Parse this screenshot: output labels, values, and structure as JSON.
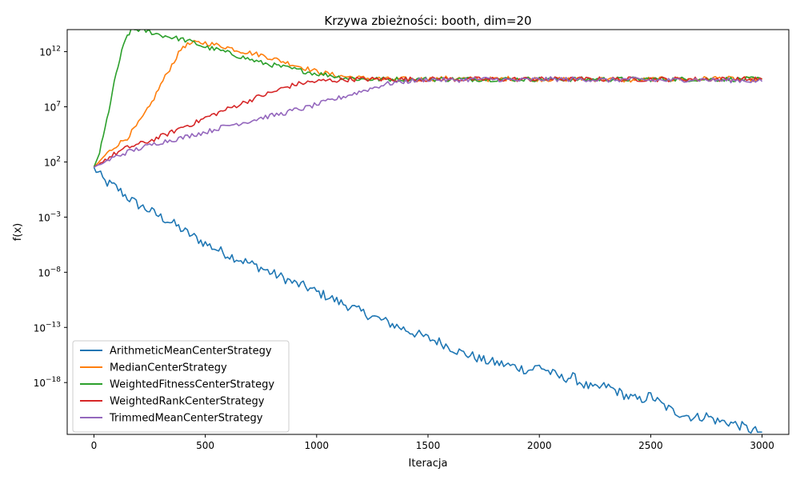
{
  "chart_data": {
    "type": "line",
    "title": "Krzywa zbieżności: booth, dim=20",
    "xlabel": "Iteracja",
    "ylabel": "f(x)",
    "yscale": "log",
    "xlim": [
      -120,
      3120
    ],
    "ylim_exp": [
      -22.7,
      14.0
    ],
    "xticks": [
      0,
      500,
      1000,
      1500,
      2000,
      2500,
      3000
    ],
    "yticks_exp": [
      12,
      7,
      2,
      -3,
      -8,
      -13,
      -18
    ],
    "ytick_labels": [
      {
        "base": "10",
        "exp": "12"
      },
      {
        "base": "10",
        "exp": "7"
      },
      {
        "base": "10",
        "exp": "2"
      },
      {
        "base": "10",
        "exp": "−3"
      },
      {
        "base": "10",
        "exp": "−8"
      },
      {
        "base": "10",
        "exp": "−13"
      },
      {
        "base": "10",
        "exp": "−18"
      }
    ],
    "grid": false,
    "legend_position": "lower-left",
    "series": [
      {
        "name": "ArithmeticMeanCenterStrategy",
        "color": "#1f77b4",
        "x": [
          0,
          50,
          100,
          150,
          200,
          250,
          300,
          350,
          400,
          450,
          500,
          550,
          600,
          650,
          700,
          750,
          800,
          850,
          900,
          950,
          1000,
          1050,
          1100,
          1150,
          1200,
          1250,
          1300,
          1350,
          1400,
          1450,
          1500,
          1550,
          1600,
          1650,
          1700,
          1750,
          1800,
          1850,
          1900,
          1950,
          2000,
          2050,
          2100,
          2150,
          2200,
          2250,
          2300,
          2350,
          2400,
          2450,
          2500,
          2550,
          2600,
          2650,
          2700,
          2750,
          2800,
          2850,
          2900,
          2950,
          3000
        ],
        "log10_values": [
          1.5,
          0.2,
          -0.3,
          -1.2,
          -1.9,
          -2.4,
          -3.0,
          -3.5,
          -4.2,
          -4.8,
          -5.4,
          -5.9,
          -6.4,
          -6.8,
          -7.2,
          -7.6,
          -8.1,
          -8.5,
          -9.0,
          -9.3,
          -9.8,
          -10.2,
          -10.7,
          -11.1,
          -11.6,
          -12.0,
          -12.4,
          -12.8,
          -13.2,
          -13.6,
          -14.0,
          -14.3,
          -14.8,
          -15.3,
          -15.6,
          -16.0,
          -16.2,
          -16.4,
          -16.6,
          -16.9,
          -16.5,
          -17.1,
          -17.6,
          -17.5,
          -18.2,
          -18.6,
          -18.3,
          -18.8,
          -19.3,
          -19.6,
          -19.2,
          -20.0,
          -20.6,
          -20.9,
          -21.2,
          -21.0,
          -21.5,
          -21.6,
          -21.9,
          -22.3,
          -22.5
        ]
      },
      {
        "name": "MedianCenterStrategy",
        "color": "#ff7f0e",
        "x": [
          0,
          50,
          100,
          150,
          200,
          250,
          300,
          350,
          400,
          450,
          500,
          550,
          600,
          650,
          700,
          750,
          800,
          850,
          900,
          950,
          1000,
          1050,
          1100,
          1150,
          1200,
          1250,
          1300,
          1350,
          1400,
          1450,
          1500,
          1600,
          1700,
          1800,
          1900,
          2000,
          2100,
          2200,
          2300,
          2400,
          2500,
          2600,
          2700,
          2800,
          2900,
          3000
        ],
        "log10_values": [
          1.5,
          2.6,
          3.5,
          4.2,
          5.5,
          7.0,
          9.0,
          10.8,
          12.5,
          12.8,
          12.8,
          12.6,
          12.4,
          12.1,
          11.9,
          11.7,
          11.4,
          11.1,
          10.8,
          10.5,
          10.2,
          10.0,
          9.8,
          9.7,
          9.6,
          9.6,
          9.5,
          9.5,
          9.5,
          9.5,
          9.5,
          9.6,
          9.5,
          9.5,
          9.6,
          9.5,
          9.5,
          9.5,
          9.5,
          9.4,
          9.5,
          9.5,
          9.5,
          9.6,
          9.5,
          9.5
        ]
      },
      {
        "name": "WeightedFitnessCenterStrategy",
        "color": "#2ca02c",
        "x": [
          0,
          25,
          50,
          75,
          100,
          125,
          150,
          175,
          200,
          225,
          250,
          300,
          350,
          400,
          450,
          500,
          550,
          600,
          650,
          700,
          750,
          800,
          850,
          900,
          950,
          1000,
          1050,
          1100,
          1150,
          1200,
          1250,
          1300,
          1400,
          1500,
          1600,
          1700,
          1800,
          1900,
          2000,
          2100,
          2200,
          2300,
          2400,
          2500,
          2600,
          2700,
          2800,
          2900,
          3000
        ],
        "log10_values": [
          1.5,
          2.8,
          5.0,
          7.5,
          10.0,
          12.0,
          13.5,
          14.0,
          14.0,
          13.9,
          13.8,
          13.5,
          13.3,
          13.1,
          12.8,
          12.4,
          12.2,
          11.9,
          11.6,
          11.3,
          11.0,
          10.8,
          10.6,
          10.4,
          10.2,
          10.0,
          9.9,
          9.7,
          9.6,
          9.5,
          9.5,
          9.5,
          9.5,
          9.5,
          9.5,
          9.5,
          9.5,
          9.5,
          9.5,
          9.5,
          9.5,
          9.5,
          9.5,
          9.5,
          9.5,
          9.5,
          9.5,
          9.5,
          9.5
        ]
      },
      {
        "name": "WeightedRankCenterStrategy",
        "color": "#d62728",
        "x": [
          0,
          50,
          100,
          150,
          200,
          250,
          300,
          350,
          400,
          450,
          500,
          550,
          600,
          650,
          700,
          750,
          800,
          850,
          900,
          950,
          1000,
          1050,
          1100,
          1150,
          1200,
          1300,
          1400,
          1500,
          1600,
          1700,
          1800,
          1900,
          2000,
          2100,
          2200,
          2300,
          2400,
          2500,
          2600,
          2700,
          2800,
          2900,
          3000
        ],
        "log10_values": [
          1.5,
          2.2,
          2.8,
          3.3,
          3.6,
          3.9,
          4.3,
          4.7,
          5.2,
          5.5,
          6.0,
          6.4,
          6.8,
          7.2,
          7.6,
          8.0,
          8.3,
          8.7,
          9.0,
          9.2,
          9.3,
          9.4,
          9.4,
          9.5,
          9.5,
          9.5,
          9.5,
          9.5,
          9.5,
          9.5,
          9.5,
          9.5,
          9.5,
          9.5,
          9.5,
          9.5,
          9.5,
          9.5,
          9.5,
          9.5,
          9.5,
          9.5,
          9.5
        ]
      },
      {
        "name": "TrimmedMeanCenterStrategy",
        "color": "#9467bd",
        "x": [
          0,
          50,
          100,
          150,
          200,
          250,
          300,
          350,
          400,
          450,
          500,
          550,
          600,
          650,
          700,
          750,
          800,
          850,
          900,
          950,
          1000,
          1050,
          1100,
          1150,
          1200,
          1250,
          1300,
          1350,
          1400,
          1450,
          1500,
          1600,
          1700,
          1800,
          1900,
          2000,
          2100,
          2200,
          2300,
          2400,
          2500,
          2600,
          2700,
          2800,
          2900,
          3000
        ],
        "log10_values": [
          1.5,
          2.0,
          2.5,
          2.9,
          3.2,
          3.5,
          3.8,
          4.0,
          4.2,
          4.5,
          4.7,
          5.0,
          5.3,
          5.5,
          5.7,
          6.0,
          6.2,
          6.4,
          6.7,
          6.9,
          7.2,
          7.5,
          7.8,
          8.1,
          8.4,
          8.7,
          9.0,
          9.2,
          9.3,
          9.4,
          9.5,
          9.4,
          9.5,
          9.5,
          9.4,
          9.5,
          9.5,
          9.5,
          9.4,
          9.5,
          9.4,
          9.4,
          9.5,
          9.4,
          9.4,
          9.3
        ]
      }
    ]
  }
}
